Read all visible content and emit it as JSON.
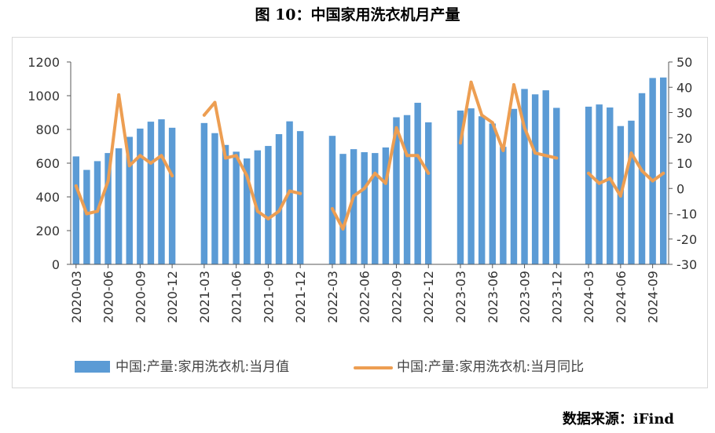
{
  "title": "图 10：中国家用洗衣机月产量",
  "source": "数据来源：iFind",
  "chart_data": {
    "type": "bar+line",
    "x": [
      "2020-03",
      "2020-04",
      "2020-05",
      "2020-06",
      "2020-07",
      "2020-08",
      "2020-09",
      "2020-10",
      "2020-11",
      "2020-12",
      "2021-01",
      "2021-02",
      "2021-03",
      "2021-04",
      "2021-05",
      "2021-06",
      "2021-07",
      "2021-08",
      "2021-09",
      "2021-10",
      "2021-11",
      "2021-12",
      "2022-01",
      "2022-02",
      "2022-03",
      "2022-04",
      "2022-05",
      "2022-06",
      "2022-07",
      "2022-08",
      "2022-09",
      "2022-10",
      "2022-11",
      "2022-12",
      "2023-01",
      "2023-02",
      "2023-03",
      "2023-04",
      "2023-05",
      "2023-06",
      "2023-07",
      "2023-08",
      "2023-09",
      "2023-10",
      "2023-11",
      "2023-12",
      "2024-01",
      "2024-02",
      "2024-03",
      "2024-04",
      "2024-05",
      "2024-06",
      "2024-07",
      "2024-08",
      "2024-09",
      "2024-10"
    ],
    "x_tick_labels": [
      "2020-03",
      "2020-06",
      "2020-09",
      "2020-12",
      "2021-03",
      "2021-06",
      "2021-09",
      "2021-12",
      "2022-03",
      "2022-06",
      "2022-09",
      "2022-12",
      "2023-03",
      "2023-06",
      "2023-09",
      "2023-12",
      "2024-03",
      "2024-06",
      "2024-09"
    ],
    "y_left": {
      "min": 0,
      "max": 1200,
      "step": 200,
      "ticks": [
        "0",
        "200",
        "400",
        "600",
        "800",
        "1000",
        "1200"
      ]
    },
    "y_right": {
      "min": -30,
      "max": 50,
      "step": 10,
      "ticks": [
        "-30",
        "-20",
        "-10",
        "0",
        "10",
        "20",
        "30",
        "40",
        "50"
      ]
    },
    "series": [
      {
        "name": "中国:产量:家用洗衣机:当月值",
        "kind": "bar",
        "axis": "left",
        "color": "#5b9bd5",
        "values": [
          640,
          560,
          612,
          660,
          688,
          756,
          805,
          846,
          860,
          810,
          null,
          null,
          838,
          778,
          708,
          668,
          628,
          676,
          702,
          772,
          848,
          790,
          null,
          null,
          762,
          655,
          683,
          665,
          660,
          693,
          872,
          885,
          958,
          842,
          null,
          null,
          912,
          925,
          878,
          835,
          697,
          922,
          1040,
          1008,
          1032,
          928,
          null,
          null,
          935,
          948,
          930,
          820,
          852,
          1015,
          1105,
          1108
        ]
      },
      {
        "name": "中国:产量:家用洗衣机:当月同比",
        "kind": "line",
        "axis": "right",
        "color": "#ed9e52",
        "values": [
          1,
          -10,
          -9,
          3,
          37,
          9,
          13,
          10,
          13,
          5,
          null,
          null,
          29,
          34,
          12,
          13,
          5,
          -9,
          -12,
          -9,
          -1,
          -2,
          null,
          null,
          -8,
          -16,
          -3,
          0,
          6,
          2,
          24,
          13,
          13,
          6,
          null,
          null,
          18,
          42,
          29,
          26,
          15,
          41,
          24,
          14,
          13,
          12,
          null,
          null,
          6,
          2,
          4,
          -3,
          14,
          7,
          3,
          6
        ]
      }
    ],
    "legend": "bottom"
  }
}
